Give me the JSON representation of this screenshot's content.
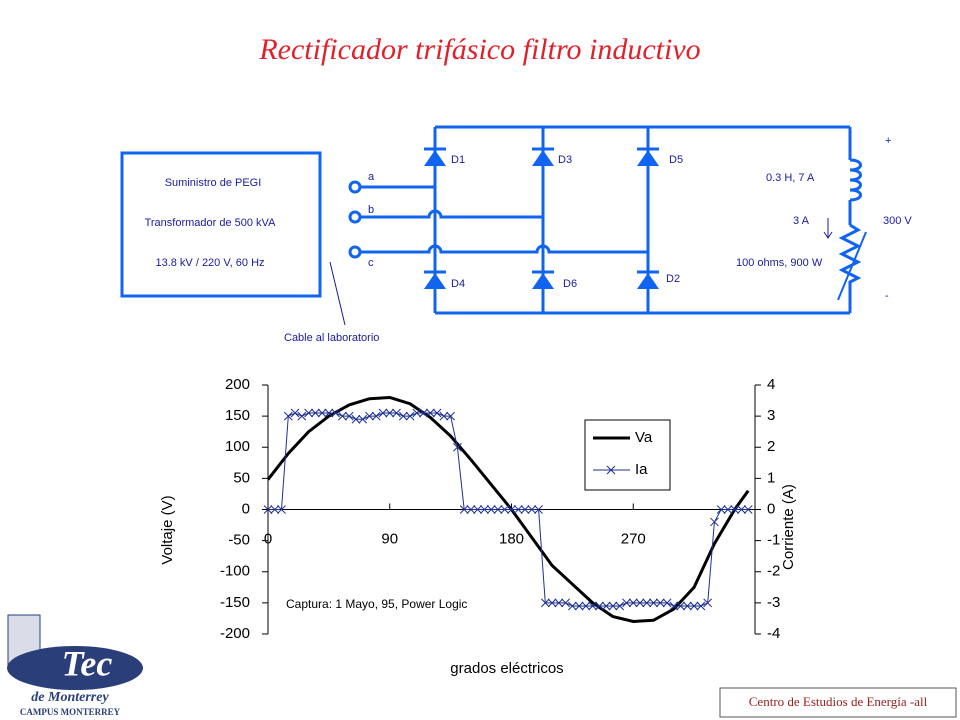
{
  "title": "Rectificador trifásico filtro inductivo",
  "diagram": {
    "supply": [
      "Suministro de PEGI",
      "Transformador de 500 kVA",
      "13.8 kV / 220 V, 60 Hz"
    ],
    "terminals": [
      "a",
      "b",
      "c"
    ],
    "diodes": [
      "D1",
      "D3",
      "D5",
      "D4",
      "D6",
      "D2"
    ],
    "load": {
      "plus": "+",
      "inductor": "0.3 H, 7 A",
      "current": "3 A",
      "voltage": "300 V",
      "resistor": "100 ohms, 900 W",
      "minus": "-"
    },
    "cable": "Cable al laboratorio"
  },
  "chart_data": {
    "type": "line",
    "xlabel": "grados eléctricos",
    "ylabel": "Voltaje (V)",
    "y2label": "Corriente (A)",
    "annotation": "Captura: 1 Mayo, 95, Power Logic",
    "xlim": [
      0,
      360
    ],
    "xticks": [
      0,
      90,
      180,
      270
    ],
    "ylim": [
      -200,
      200
    ],
    "yticks": [
      200,
      150,
      100,
      50,
      0,
      -50,
      -100,
      -150,
      -200
    ],
    "y2lim": [
      -4,
      4
    ],
    "y2ticks": [
      4,
      3,
      2,
      1,
      0,
      -1,
      -2,
      -3,
      -4
    ],
    "legend": "upper right",
    "series": [
      {
        "name": "Va",
        "color": "#000000",
        "x": [
          0,
          15,
          30,
          45,
          60,
          75,
          90,
          105,
          120,
          135,
          150,
          165,
          180,
          195,
          210,
          225,
          240,
          255,
          270,
          285,
          300,
          315,
          330,
          345,
          355
        ],
        "values": [
          48,
          90,
          125,
          150,
          168,
          178,
          180,
          170,
          148,
          118,
          80,
          40,
          0,
          -45,
          -90,
          -120,
          -150,
          -172,
          -180,
          -178,
          -160,
          -125,
          -55,
          0,
          30
        ]
      },
      {
        "name": "Ia",
        "color": "#1f2f8f",
        "axis": "y2",
        "marker": "x",
        "x": [
          0,
          5,
          10,
          15,
          20,
          25,
          30,
          35,
          40,
          45,
          50,
          55,
          60,
          65,
          70,
          75,
          80,
          85,
          90,
          95,
          100,
          105,
          110,
          115,
          120,
          125,
          130,
          135,
          140,
          145,
          150,
          155,
          160,
          165,
          170,
          175,
          180,
          185,
          190,
          195,
          200,
          205,
          210,
          215,
          220,
          225,
          230,
          235,
          240,
          245,
          250,
          255,
          260,
          265,
          270,
          275,
          280,
          285,
          290,
          295,
          300,
          305,
          310,
          315,
          320,
          325,
          330,
          335,
          340,
          345,
          350,
          355
        ],
        "values": [
          0,
          0,
          0,
          3.0,
          3.1,
          3.0,
          3.1,
          3.1,
          3.1,
          3.1,
          3.1,
          3.0,
          3.0,
          2.9,
          2.9,
          3.0,
          3.0,
          3.1,
          3.1,
          3.1,
          3.0,
          3.0,
          3.1,
          3.1,
          3.1,
          3.1,
          3.0,
          3.0,
          2.0,
          0,
          0,
          0,
          0,
          0,
          0,
          0,
          0,
          0,
          0,
          0,
          0,
          -3.0,
          -3.0,
          -3.0,
          -3.0,
          -3.1,
          -3.1,
          -3.1,
          -3.1,
          -3.1,
          -3.1,
          -3.1,
          -3.1,
          -3.0,
          -3.0,
          -3.0,
          -3.0,
          -3.0,
          -3.0,
          -3.0,
          -3.1,
          -3.1,
          -3.1,
          -3.1,
          -3.1,
          -3.0,
          -0.4,
          0,
          0,
          0,
          0,
          0
        ]
      }
    ]
  },
  "logo": {
    "brand": "Tec",
    "sub": "de Monterrey",
    "campus": "CAMPUS MONTERREY"
  },
  "footer": "Centro de Estudios de Energía -all"
}
